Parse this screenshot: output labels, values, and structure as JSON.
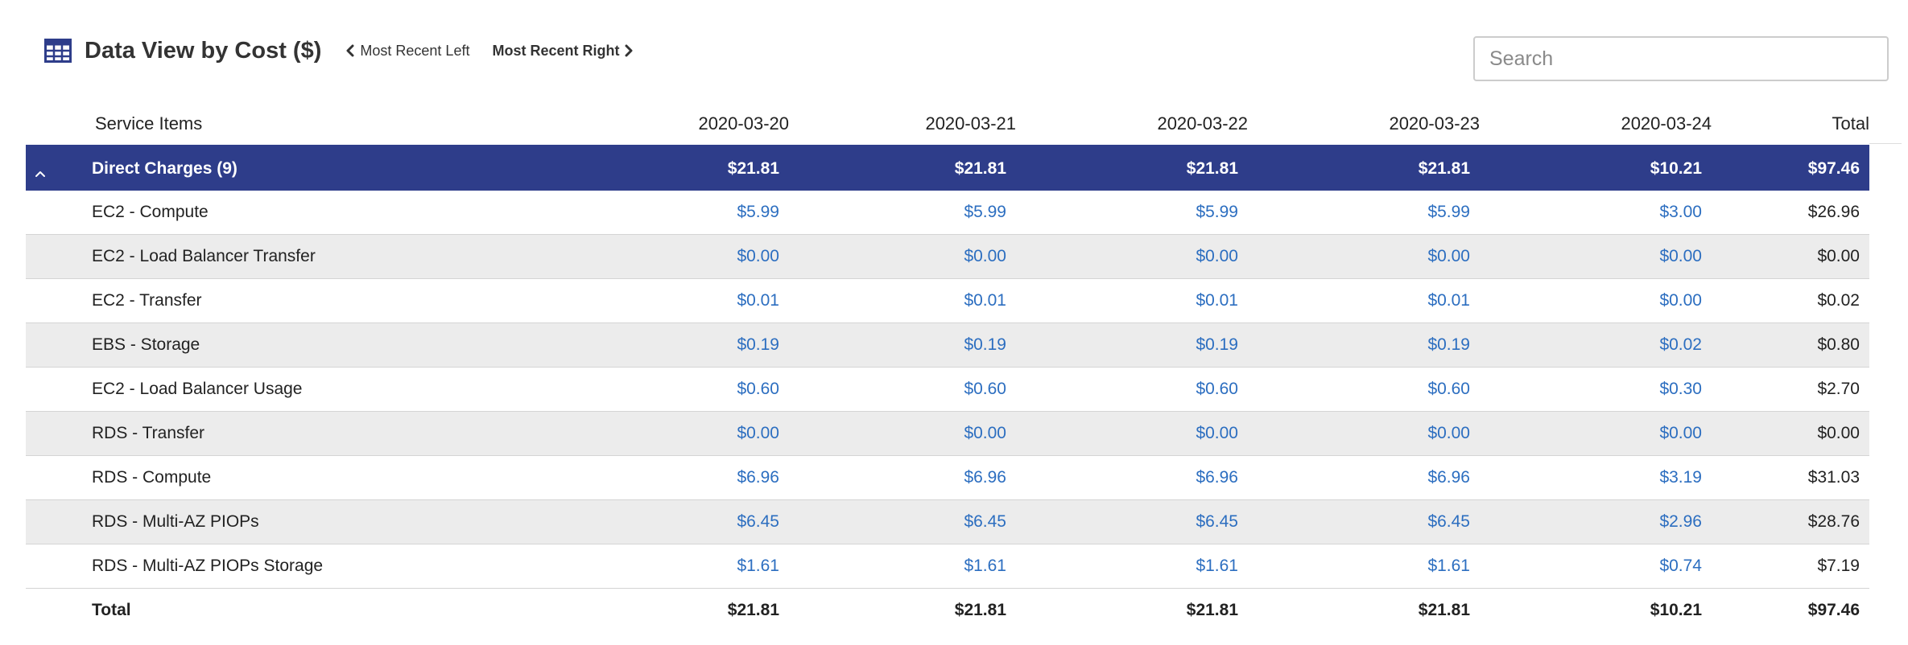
{
  "header": {
    "title": "Data View by Cost ($)",
    "prev_label": "Most Recent Left",
    "next_label": "Most Recent Right"
  },
  "search": {
    "placeholder": "Search",
    "value": ""
  },
  "icons": {
    "title_icon": "table-grid-icon",
    "prev_icon": "chevron-left-icon",
    "next_icon": "chevron-right-icon",
    "collapse_icon": "chevron-up-icon"
  },
  "colors": {
    "group_row_bg": "#2e3d8a",
    "link_value": "#2c6ec0",
    "striped_row_bg": "#ececec"
  },
  "table": {
    "columns": [
      "Service Items",
      "2020-03-20",
      "2020-03-21",
      "2020-03-22",
      "2020-03-23",
      "2020-03-24",
      "Total"
    ],
    "group": {
      "label": "Direct Charges (9)",
      "values": [
        "$21.81",
        "$21.81",
        "$21.81",
        "$21.81",
        "$10.21"
      ],
      "total": "$97.46"
    },
    "rows": [
      {
        "name": "EC2 - Compute",
        "values": [
          "$5.99",
          "$5.99",
          "$5.99",
          "$5.99",
          "$3.00"
        ],
        "total": "$26.96"
      },
      {
        "name": "EC2 - Load Balancer Transfer",
        "values": [
          "$0.00",
          "$0.00",
          "$0.00",
          "$0.00",
          "$0.00"
        ],
        "total": "$0.00"
      },
      {
        "name": "EC2 - Transfer",
        "values": [
          "$0.01",
          "$0.01",
          "$0.01",
          "$0.01",
          "$0.00"
        ],
        "total": "$0.02"
      },
      {
        "name": "EBS - Storage",
        "values": [
          "$0.19",
          "$0.19",
          "$0.19",
          "$0.19",
          "$0.02"
        ],
        "total": "$0.80"
      },
      {
        "name": "EC2 - Load Balancer Usage",
        "values": [
          "$0.60",
          "$0.60",
          "$0.60",
          "$0.60",
          "$0.30"
        ],
        "total": "$2.70"
      },
      {
        "name": "RDS - Transfer",
        "values": [
          "$0.00",
          "$0.00",
          "$0.00",
          "$0.00",
          "$0.00"
        ],
        "total": "$0.00"
      },
      {
        "name": "RDS - Compute",
        "values": [
          "$6.96",
          "$6.96",
          "$6.96",
          "$6.96",
          "$3.19"
        ],
        "total": "$31.03"
      },
      {
        "name": "RDS - Multi-AZ PIOPs",
        "values": [
          "$6.45",
          "$6.45",
          "$6.45",
          "$6.45",
          "$2.96"
        ],
        "total": "$28.76"
      },
      {
        "name": "RDS - Multi-AZ PIOPs Storage",
        "values": [
          "$1.61",
          "$1.61",
          "$1.61",
          "$1.61",
          "$0.74"
        ],
        "total": "$7.19"
      }
    ],
    "footer": {
      "label": "Total",
      "values": [
        "$21.81",
        "$21.81",
        "$21.81",
        "$21.81",
        "$10.21"
      ],
      "total": "$97.46"
    }
  }
}
